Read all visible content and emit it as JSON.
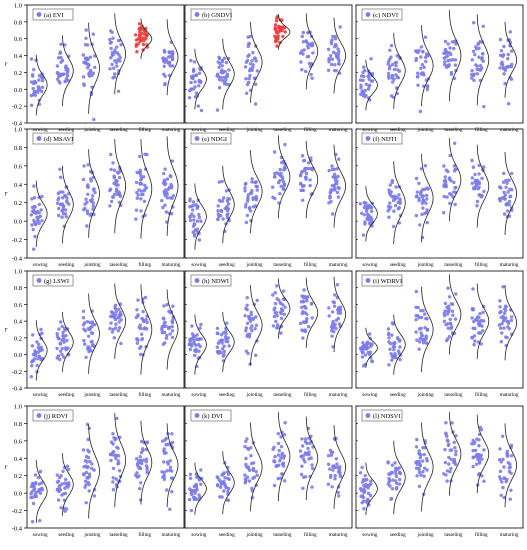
{
  "figure": {
    "y_axis_letter": "r",
    "stage_labels": [
      "sowing",
      "seeding",
      "jointing",
      "tasseling",
      "filling",
      "maturing"
    ],
    "ylim": [
      -0.4,
      1.0
    ],
    "y_ticks": [
      -0.4,
      -0.2,
      0.0,
      0.2,
      0.4,
      0.6,
      0.8,
      1.0
    ],
    "colors": {
      "points": "#7b7bea",
      "highlight": "#ee3b3b",
      "curve": "#222222",
      "axes": "#000000"
    }
  },
  "chart_data": [
    {
      "type": "scatter",
      "panel": "(a)",
      "legend": "(a) EVI",
      "row": 0,
      "col": 0,
      "stages": [
        "sowing",
        "seeding",
        "jointing",
        "tasseling",
        "filling",
        "maturing"
      ],
      "means": [
        0.05,
        0.22,
        0.25,
        0.42,
        0.6,
        0.38
      ],
      "spread": [
        0.12,
        0.14,
        0.18,
        0.16,
        0.08,
        0.15
      ],
      "highlight_stage": "filling"
    },
    {
      "type": "scatter",
      "panel": "(b)",
      "legend": "(b) GNDVI",
      "row": 0,
      "col": 1,
      "stages": [
        "sowing",
        "seeding",
        "jointing",
        "tasseling",
        "filling",
        "maturing"
      ],
      "means": [
        0.12,
        0.18,
        0.32,
        0.68,
        0.45,
        0.4
      ],
      "spread": [
        0.12,
        0.14,
        0.16,
        0.07,
        0.15,
        0.15
      ],
      "highlight_stage": "tasseling"
    },
    {
      "type": "scatter",
      "panel": "(c)",
      "legend": "(c) NDVI",
      "row": 0,
      "col": 2,
      "stages": [
        "sowing",
        "seeding",
        "jointing",
        "tasseling",
        "filling",
        "maturing"
      ],
      "means": [
        0.05,
        0.22,
        0.28,
        0.4,
        0.35,
        0.35
      ],
      "spread": [
        0.1,
        0.15,
        0.16,
        0.18,
        0.18,
        0.15
      ]
    },
    {
      "type": "scatter",
      "panel": "(d)",
      "legend": "(d) MSAVI",
      "row": 1,
      "col": 0,
      "stages": [
        "sowing",
        "seeding",
        "jointing",
        "tasseling",
        "filling",
        "maturing"
      ],
      "means": [
        0.08,
        0.18,
        0.3,
        0.38,
        0.35,
        0.38
      ],
      "spread": [
        0.12,
        0.14,
        0.16,
        0.17,
        0.18,
        0.18
      ]
    },
    {
      "type": "scatter",
      "panel": "(e)",
      "legend": "(e) NDGI",
      "row": 1,
      "col": 1,
      "stages": [
        "sowing",
        "seeding",
        "jointing",
        "tasseling",
        "filling",
        "maturing"
      ],
      "means": [
        0.05,
        0.18,
        0.32,
        0.48,
        0.45,
        0.38
      ],
      "spread": [
        0.12,
        0.14,
        0.15,
        0.15,
        0.14,
        0.15
      ]
    },
    {
      "type": "scatter",
      "panel": "(f)",
      "legend": "(f) NDTI",
      "row": 1,
      "col": 2,
      "stages": [
        "sowing",
        "seeding",
        "jointing",
        "tasseling",
        "filling",
        "maturing"
      ],
      "means": [
        0.08,
        0.2,
        0.25,
        0.45,
        0.38,
        0.3
      ],
      "spread": [
        0.1,
        0.15,
        0.16,
        0.15,
        0.15,
        0.15
      ]
    },
    {
      "type": "scatter",
      "panel": "(g)",
      "legend": "(g) LSWI",
      "row": 2,
      "col": 0,
      "stages": [
        "sowing",
        "seeding",
        "jointing",
        "tasseling",
        "filling",
        "maturing"
      ],
      "means": [
        0.05,
        0.15,
        0.25,
        0.4,
        0.3,
        0.3
      ],
      "spread": [
        0.12,
        0.12,
        0.16,
        0.15,
        0.18,
        0.16
      ]
    },
    {
      "type": "scatter",
      "panel": "(h)",
      "legend": "(h) NDWI",
      "row": 2,
      "col": 1,
      "stages": [
        "sowing",
        "seeding",
        "jointing",
        "tasseling",
        "filling",
        "maturing"
      ],
      "means": [
        0.12,
        0.15,
        0.35,
        0.55,
        0.5,
        0.48
      ],
      "spread": [
        0.12,
        0.12,
        0.16,
        0.12,
        0.14,
        0.15
      ]
    },
    {
      "type": "scatter",
      "panel": "(i)",
      "legend": "(i) WDRVI",
      "row": 2,
      "col": 2,
      "stages": [
        "sowing",
        "seeding",
        "jointing",
        "tasseling",
        "filling",
        "maturing"
      ],
      "means": [
        0.08,
        0.12,
        0.3,
        0.48,
        0.4,
        0.38
      ],
      "spread": [
        0.08,
        0.12,
        0.17,
        0.16,
        0.15,
        0.15
      ]
    },
    {
      "type": "scatter",
      "panel": "(j)",
      "legend": "(j) RDVI",
      "row": 3,
      "col": 0,
      "stages": [
        "sowing",
        "seeding",
        "jointing",
        "tasseling",
        "filling",
        "maturing"
      ],
      "means": [
        0.02,
        0.1,
        0.25,
        0.38,
        0.35,
        0.32
      ],
      "spread": [
        0.12,
        0.12,
        0.18,
        0.18,
        0.16,
        0.16
      ]
    },
    {
      "type": "scatter",
      "panel": "(k)",
      "legend": "(k) DVI",
      "row": 3,
      "col": 1,
      "stages": [
        "sowing",
        "seeding",
        "jointing",
        "tasseling",
        "filling",
        "maturing"
      ],
      "means": [
        0.05,
        0.12,
        0.3,
        0.42,
        0.4,
        0.3
      ],
      "spread": [
        0.1,
        0.12,
        0.17,
        0.17,
        0.16,
        0.16
      ]
    },
    {
      "type": "scatter",
      "panel": "(l)",
      "legend": "(l) NDSVI",
      "row": 3,
      "col": 2,
      "stages": [
        "sowing",
        "seeding",
        "jointing",
        "tasseling",
        "filling",
        "maturing"
      ],
      "means": [
        0.05,
        0.18,
        0.3,
        0.45,
        0.45,
        0.32
      ],
      "spread": [
        0.1,
        0.14,
        0.17,
        0.16,
        0.15,
        0.16
      ]
    }
  ]
}
